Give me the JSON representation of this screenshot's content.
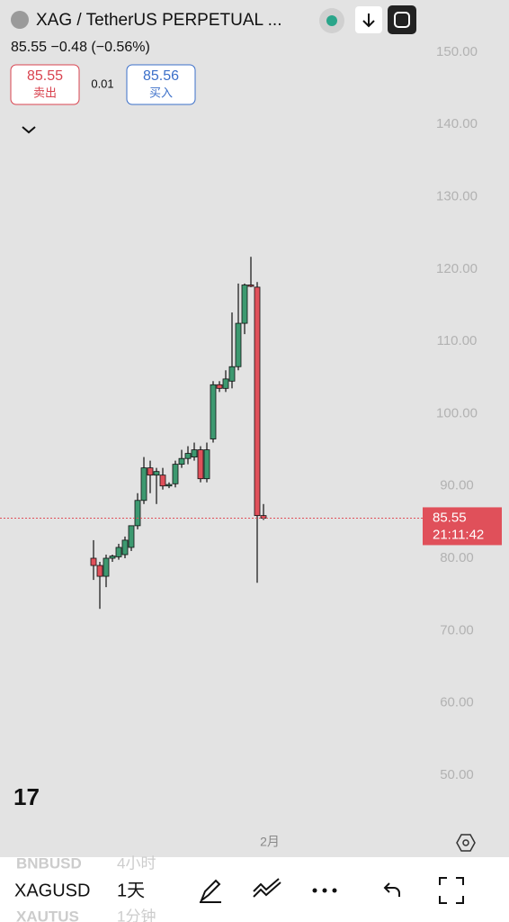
{
  "header": {
    "symbol": "XAG / TetherUS PERPETUAL ...",
    "price_line": "85.55  −0.48 (−0.56%)",
    "sell_price": "85.55",
    "sell_label": "卖出",
    "spread": "0.01",
    "buy_price": "85.56",
    "buy_label": "买入"
  },
  "chart_data": {
    "type": "candlestick",
    "categories": [
      null,
      null,
      null,
      null,
      null,
      null,
      null,
      null,
      null,
      null,
      null,
      null,
      null,
      null,
      null,
      null,
      null,
      null,
      null,
      null,
      null,
      null,
      null,
      null,
      null,
      null,
      null,
      null
    ],
    "series": [
      {
        "open": [
          80,
          79,
          77.5,
          80,
          80.2,
          80.5,
          81.5,
          84.5,
          88,
          92.5,
          91.5,
          91.5,
          90,
          90.3,
          93,
          93.8,
          94,
          95,
          91,
          96.5,
          104,
          103.5,
          104.5,
          106.5,
          112.5,
          117.8,
          117.5,
          85.9
        ],
        "high": [
          82.5,
          79.5,
          80.5,
          80.5,
          82,
          83,
          84.5,
          89,
          94,
          93.5,
          92.5,
          92.5,
          90.5,
          93.5,
          95,
          95.5,
          96,
          95.5,
          96,
          104.5,
          104.5,
          106,
          114,
          118,
          118,
          121.7,
          118.2,
          87.5
        ],
        "low": [
          77,
          73,
          76,
          79.5,
          79.8,
          80,
          81,
          84,
          87.5,
          89,
          87.5,
          89.5,
          89.7,
          89.8,
          92.5,
          93,
          93.5,
          90.5,
          90.5,
          96,
          103,
          103,
          103.5,
          106,
          111,
          117.5,
          76.6,
          85.3
        ],
        "close": [
          79,
          77.5,
          80,
          80.3,
          81.5,
          82.5,
          84.5,
          88,
          92.5,
          91.5,
          92,
          90,
          90.2,
          93,
          93.8,
          94.5,
          95,
          91,
          95,
          104,
          103.5,
          104.8,
          106.5,
          112.5,
          117.8,
          117.7,
          85.9,
          85.55
        ],
        "up_color": "#3d9970",
        "down_color": "#e0505a"
      }
    ],
    "ylim": [
      45,
      155
    ],
    "yticks": [
      {
        "value": 50,
        "label": "50.00"
      },
      {
        "value": 60,
        "label": "60.00"
      },
      {
        "value": 70,
        "label": "70.00"
      },
      {
        "value": 80,
        "label": "80.00"
      },
      {
        "value": 90,
        "label": "90.00"
      },
      {
        "value": 100,
        "label": "100.00"
      },
      {
        "value": 110,
        "label": "110.00"
      },
      {
        "value": 120,
        "label": "120.00"
      },
      {
        "value": 130,
        "label": "130.00"
      },
      {
        "value": 140,
        "label": "140.00"
      },
      {
        "value": 150,
        "label": "150.00"
      }
    ],
    "last_price": 85.55,
    "countdown": "21:11:42",
    "time_label": "2月"
  },
  "toolbar": {
    "symbols": [
      {
        "name": "BNBUSD",
        "interval": "4小时"
      },
      {
        "name": "XAGUSD",
        "interval": "1天"
      },
      {
        "name": "XAUTUS",
        "interval": "1分钟"
      }
    ]
  }
}
